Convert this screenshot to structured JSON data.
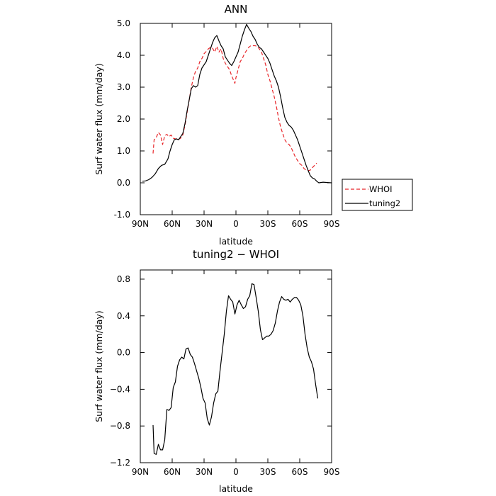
{
  "chart_data": [
    {
      "type": "line",
      "title": "ANN",
      "xlabel": "latitude",
      "ylabel": "Surf water flux (mm/day)",
      "xlim": [
        90,
        -90
      ],
      "ylim": [
        -1.0,
        5.0
      ],
      "x_ticks": [
        90,
        60,
        30,
        0,
        -30,
        -60,
        -90
      ],
      "x_tick_labels": [
        "90N",
        "60N",
        "30N",
        "0",
        "30S",
        "60S",
        "90S"
      ],
      "y_ticks": [
        -1.0,
        0.0,
        1.0,
        2.0,
        3.0,
        4.0,
        5.0
      ],
      "y_tick_labels": [
        "-1.0",
        "0.0",
        "1.0",
        "2.0",
        "3.0",
        "4.0",
        "5.0"
      ],
      "grid": false,
      "legend": "right, outside plot",
      "series": [
        {
          "name": "WHOI",
          "color": "#e8262a",
          "dash": true,
          "points": [
            [
              78,
              0.92
            ],
            [
              77,
              1.35
            ],
            [
              75,
              1.42
            ],
            [
              73,
              1.58
            ],
            [
              71,
              1.5
            ],
            [
              69,
              1.2
            ],
            [
              67,
              1.48
            ],
            [
              65,
              1.52
            ],
            [
              63,
              1.45
            ],
            [
              61,
              1.5
            ],
            [
              59,
              1.4
            ],
            [
              57,
              1.38
            ],
            [
              55,
              1.35
            ],
            [
              52,
              1.4
            ],
            [
              50,
              1.5
            ],
            [
              48,
              1.8
            ],
            [
              46,
              2.2
            ],
            [
              44,
              2.6
            ],
            [
              42,
              3.0
            ],
            [
              40,
              3.3
            ],
            [
              38,
              3.5
            ],
            [
              36,
              3.6
            ],
            [
              34,
              3.8
            ],
            [
              32,
              3.9
            ],
            [
              30,
              4.05
            ],
            [
              28,
              4.12
            ],
            [
              26,
              4.2
            ],
            [
              24,
              4.25
            ],
            [
              22,
              4.22
            ],
            [
              20,
              4.1
            ],
            [
              18,
              4.28
            ],
            [
              16,
              4.1
            ],
            [
              14,
              4.2
            ],
            [
              12,
              3.9
            ],
            [
              10,
              3.75
            ],
            [
              8,
              3.65
            ],
            [
              6,
              3.55
            ],
            [
              4,
              3.35
            ],
            [
              2,
              3.2
            ],
            [
              1,
              3.12
            ],
            [
              0,
              3.3
            ],
            [
              -2,
              3.55
            ],
            [
              -4,
              3.8
            ],
            [
              -6,
              3.9
            ],
            [
              -8,
              4.05
            ],
            [
              -10,
              4.15
            ],
            [
              -12,
              4.25
            ],
            [
              -14,
              4.3
            ],
            [
              -16,
              4.3
            ],
            [
              -18,
              4.3
            ],
            [
              -20,
              4.28
            ],
            [
              -22,
              4.2
            ],
            [
              -24,
              4.1
            ],
            [
              -26,
              3.9
            ],
            [
              -28,
              3.7
            ],
            [
              -30,
              3.4
            ],
            [
              -32,
              3.2
            ],
            [
              -34,
              2.95
            ],
            [
              -36,
              2.7
            ],
            [
              -38,
              2.4
            ],
            [
              -40,
              2.05
            ],
            [
              -42,
              1.75
            ],
            [
              -44,
              1.55
            ],
            [
              -46,
              1.35
            ],
            [
              -48,
              1.25
            ],
            [
              -50,
              1.2
            ],
            [
              -52,
              1.1
            ],
            [
              -54,
              0.95
            ],
            [
              -56,
              0.8
            ],
            [
              -58,
              0.7
            ],
            [
              -60,
              0.6
            ],
            [
              -62,
              0.55
            ],
            [
              -64,
              0.45
            ],
            [
              -66,
              0.4
            ],
            [
              -68,
              0.38
            ],
            [
              -70,
              0.4
            ],
            [
              -72,
              0.48
            ],
            [
              -74,
              0.55
            ],
            [
              -76,
              0.62
            ]
          ]
        },
        {
          "name": "tuning2",
          "color": "#000000",
          "dash": false,
          "points": [
            [
              88,
              0.05
            ],
            [
              85,
              0.06
            ],
            [
              82,
              0.1
            ],
            [
              79,
              0.17
            ],
            [
              76,
              0.28
            ],
            [
              73,
              0.45
            ],
            [
              70,
              0.55
            ],
            [
              67,
              0.58
            ],
            [
              64,
              0.75
            ],
            [
              62,
              1.0
            ],
            [
              60,
              1.2
            ],
            [
              58,
              1.35
            ],
            [
              56,
              1.38
            ],
            [
              54,
              1.35
            ],
            [
              52,
              1.45
            ],
            [
              50,
              1.55
            ],
            [
              48,
              1.85
            ],
            [
              46,
              2.25
            ],
            [
              44,
              2.6
            ],
            [
              42,
              2.95
            ],
            [
              40,
              3.05
            ],
            [
              38,
              3.0
            ],
            [
              36,
              3.05
            ],
            [
              34,
              3.4
            ],
            [
              32,
              3.6
            ],
            [
              30,
              3.7
            ],
            [
              28,
              3.8
            ],
            [
              26,
              4.0
            ],
            [
              24,
              4.2
            ],
            [
              22,
              4.4
            ],
            [
              20,
              4.55
            ],
            [
              18,
              4.62
            ],
            [
              16,
              4.45
            ],
            [
              14,
              4.3
            ],
            [
              12,
              4.2
            ],
            [
              10,
              3.95
            ],
            [
              8,
              3.85
            ],
            [
              6,
              3.75
            ],
            [
              4,
              3.68
            ],
            [
              2,
              3.8
            ],
            [
              0,
              3.95
            ],
            [
              -2,
              4.1
            ],
            [
              -4,
              4.35
            ],
            [
              -6,
              4.6
            ],
            [
              -8,
              4.8
            ],
            [
              -10,
              4.97
            ],
            [
              -12,
              4.85
            ],
            [
              -14,
              4.75
            ],
            [
              -16,
              4.6
            ],
            [
              -18,
              4.5
            ],
            [
              -20,
              4.35
            ],
            [
              -22,
              4.25
            ],
            [
              -24,
              4.2
            ],
            [
              -26,
              4.1
            ],
            [
              -28,
              4.0
            ],
            [
              -30,
              3.9
            ],
            [
              -32,
              3.75
            ],
            [
              -34,
              3.55
            ],
            [
              -36,
              3.35
            ],
            [
              -38,
              3.2
            ],
            [
              -40,
              3.0
            ],
            [
              -42,
              2.7
            ],
            [
              -44,
              2.35
            ],
            [
              -46,
              2.05
            ],
            [
              -48,
              1.9
            ],
            [
              -50,
              1.8
            ],
            [
              -52,
              1.75
            ],
            [
              -54,
              1.65
            ],
            [
              -56,
              1.5
            ],
            [
              -58,
              1.35
            ],
            [
              -60,
              1.15
            ],
            [
              -62,
              0.95
            ],
            [
              -64,
              0.75
            ],
            [
              -66,
              0.55
            ],
            [
              -68,
              0.38
            ],
            [
              -70,
              0.22
            ],
            [
              -72,
              0.15
            ],
            [
              -74,
              0.12
            ],
            [
              -76,
              0.05
            ],
            [
              -78,
              0.0
            ],
            [
              -82,
              0.02
            ],
            [
              -86,
              0.01
            ],
            [
              -90,
              0.0
            ]
          ]
        }
      ]
    },
    {
      "type": "line",
      "title": "tuning2 − WHOI",
      "xlabel": "latitude",
      "ylabel": "Surf water flux (mm/day)",
      "xlim": [
        90,
        -90
      ],
      "ylim": [
        -1.2,
        0.9
      ],
      "x_ticks": [
        90,
        60,
        30,
        0,
        -30,
        -60,
        -90
      ],
      "x_tick_labels": [
        "90N",
        "60N",
        "30N",
        "0",
        "30S",
        "60S",
        "90S"
      ],
      "y_ticks": [
        -1.2,
        -0.8,
        -0.4,
        0.0,
        0.4,
        0.8
      ],
      "y_tick_labels": [
        "−1.2",
        "−0.8",
        "−0.4",
        "0.0",
        "0.4",
        "0.8"
      ],
      "grid": false,
      "series": [
        {
          "color": "#000000",
          "dash": false,
          "points": [
            [
              78,
              -0.79
            ],
            [
              77,
              -1.1
            ],
            [
              75,
              -1.11
            ],
            [
              73,
              -1.0
            ],
            [
              71,
              -1.06
            ],
            [
              69,
              -1.06
            ],
            [
              67,
              -0.95
            ],
            [
              65,
              -0.62
            ],
            [
              63,
              -0.63
            ],
            [
              61,
              -0.6
            ],
            [
              59,
              -0.38
            ],
            [
              57,
              -0.32
            ],
            [
              55,
              -0.15
            ],
            [
              53,
              -0.08
            ],
            [
              51,
              -0.05
            ],
            [
              49,
              -0.07
            ],
            [
              47,
              0.04
            ],
            [
              45,
              0.05
            ],
            [
              43,
              -0.02
            ],
            [
              41,
              -0.05
            ],
            [
              39,
              -0.12
            ],
            [
              37,
              -0.2
            ],
            [
              35,
              -0.28
            ],
            [
              33,
              -0.38
            ],
            [
              31,
              -0.5
            ],
            [
              29,
              -0.55
            ],
            [
              27,
              -0.72
            ],
            [
              25,
              -0.79
            ],
            [
              23,
              -0.7
            ],
            [
              21,
              -0.55
            ],
            [
              19,
              -0.45
            ],
            [
              17,
              -0.42
            ],
            [
              15,
              -0.2
            ],
            [
              13,
              0.0
            ],
            [
              11,
              0.2
            ],
            [
              9,
              0.45
            ],
            [
              7,
              0.62
            ],
            [
              5,
              0.58
            ],
            [
              3,
              0.55
            ],
            [
              1,
              0.42
            ],
            [
              -1,
              0.52
            ],
            [
              -3,
              0.57
            ],
            [
              -5,
              0.52
            ],
            [
              -7,
              0.48
            ],
            [
              -9,
              0.5
            ],
            [
              -11,
              0.58
            ],
            [
              -13,
              0.62
            ],
            [
              -15,
              0.75
            ],
            [
              -17,
              0.74
            ],
            [
              -19,
              0.6
            ],
            [
              -21,
              0.45
            ],
            [
              -23,
              0.25
            ],
            [
              -25,
              0.14
            ],
            [
              -27,
              0.16
            ],
            [
              -29,
              0.18
            ],
            [
              -31,
              0.18
            ],
            [
              -33,
              0.2
            ],
            [
              -35,
              0.24
            ],
            [
              -37,
              0.32
            ],
            [
              -39,
              0.45
            ],
            [
              -41,
              0.55
            ],
            [
              -43,
              0.61
            ],
            [
              -45,
              0.58
            ],
            [
              -47,
              0.57
            ],
            [
              -49,
              0.58
            ],
            [
              -51,
              0.55
            ],
            [
              -53,
              0.58
            ],
            [
              -55,
              0.6
            ],
            [
              -57,
              0.6
            ],
            [
              -59,
              0.57
            ],
            [
              -61,
              0.52
            ],
            [
              -63,
              0.4
            ],
            [
              -65,
              0.2
            ],
            [
              -67,
              0.05
            ],
            [
              -69,
              -0.05
            ],
            [
              -71,
              -0.1
            ],
            [
              -73,
              -0.18
            ],
            [
              -75,
              -0.35
            ],
            [
              -77,
              -0.5
            ]
          ]
        }
      ]
    }
  ]
}
